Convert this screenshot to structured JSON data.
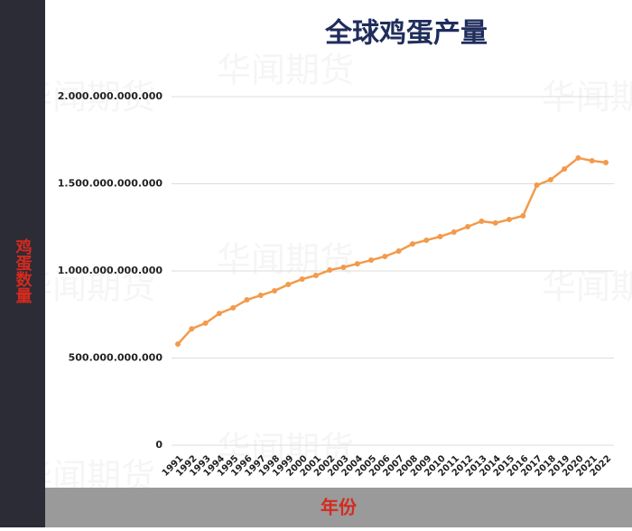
{
  "chart_data": {
    "type": "line",
    "title": "全球鸡蛋产量",
    "y_label": "鸡蛋数量",
    "x_label": "年份",
    "watermark": "华闻期货",
    "categories": [
      "1991",
      "1992",
      "1993",
      "1994",
      "1995",
      "1996",
      "1997",
      "1998",
      "1999",
      "2000",
      "2001",
      "2002",
      "2003",
      "2004",
      "2005",
      "2006",
      "2007",
      "2008",
      "2009",
      "2010",
      "2011",
      "2012",
      "2013",
      "2014",
      "2015",
      "2016",
      "2017",
      "2018",
      "2019",
      "2020",
      "2021",
      "2022"
    ],
    "series": [
      {
        "name": "全球鸡蛋产量",
        "color": "#f39a4c",
        "values": [
          580000000000,
          668000000000,
          700000000000,
          756000000000,
          788000000000,
          834000000000,
          860000000000,
          886000000000,
          922000000000,
          953000000000,
          974000000000,
          1005000000000,
          1021000000000,
          1041000000000,
          1062000000000,
          1083000000000,
          1114000000000,
          1155000000000,
          1176000000000,
          1197000000000,
          1223000000000,
          1254000000000,
          1285000000000,
          1275000000000,
          1295000000000,
          1316000000000,
          1492000000000,
          1523000000000,
          1585000000000,
          1648000000000,
          1632000000000,
          1622000000000
        ]
      }
    ],
    "ylim": [
      0,
      2000000000000
    ],
    "yticks": [
      0,
      {
        "value": 500000000000,
        "label": "500.000.000.000"
      },
      {
        "value": 1000000000000,
        "label": "1.000.000.000.000"
      },
      {
        "value": 1500000000000,
        "label": "1.500.000.000.000"
      },
      {
        "value": 2000000000000,
        "label": "2.000.000.000.000"
      }
    ],
    "grid": true
  }
}
